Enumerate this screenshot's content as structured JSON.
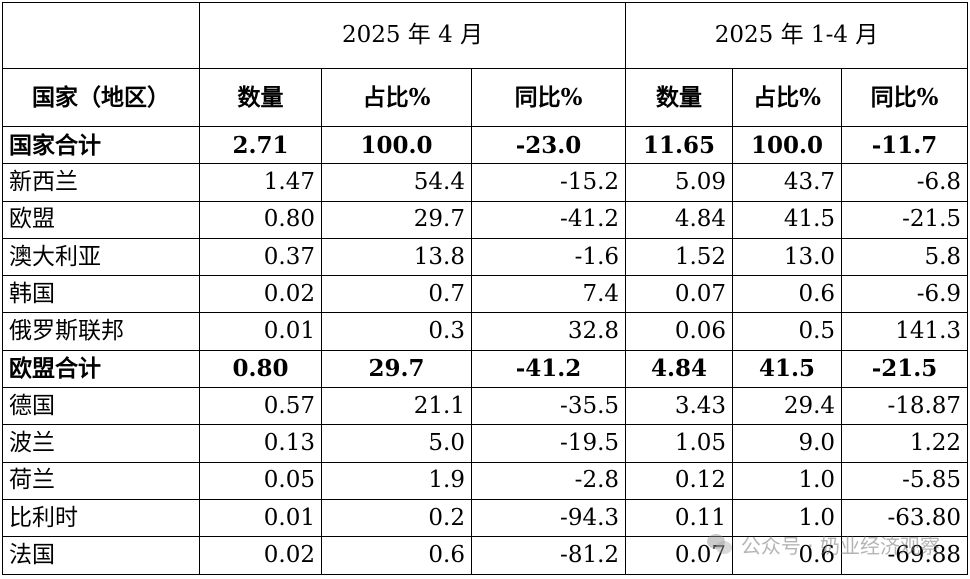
{
  "header": {
    "period1": "2025 年 4 月",
    "period2": "2025 年 1-4 月",
    "col_country": "国家（地区）",
    "col_qty": "数量",
    "col_share": "占比%",
    "col_yoy": "同比%"
  },
  "rows": [
    {
      "name": "国家合计",
      "q1": "2.71",
      "s1": "100.0",
      "y1": "-23.0",
      "q2": "11.65",
      "s2": "100.0",
      "y2": "-11.7",
      "bold": true
    },
    {
      "name": "新西兰",
      "q1": "1.47",
      "s1": "54.4",
      "y1": "-15.2",
      "q2": "5.09",
      "s2": "43.7",
      "y2": "-6.8"
    },
    {
      "name": "欧盟",
      "q1": "0.80",
      "s1": "29.7",
      "y1": "-41.2",
      "q2": "4.84",
      "s2": "41.5",
      "y2": "-21.5"
    },
    {
      "name": "澳大利亚",
      "q1": "0.37",
      "s1": "13.8",
      "y1": "-1.6",
      "q2": "1.52",
      "s2": "13.0",
      "y2": "5.8"
    },
    {
      "name": "韩国",
      "q1": "0.02",
      "s1": "0.7",
      "y1": "7.4",
      "q2": "0.07",
      "s2": "0.6",
      "y2": "-6.9"
    },
    {
      "name": "俄罗斯联邦",
      "q1": "0.01",
      "s1": "0.3",
      "y1": "32.8",
      "q2": "0.06",
      "s2": "0.5",
      "y2": "141.3"
    },
    {
      "name": "欧盟合计",
      "q1": "0.80",
      "s1": "29.7",
      "y1": "-41.2",
      "q2": "4.84",
      "s2": "41.5",
      "y2": "-21.5",
      "bold": true
    },
    {
      "name": "德国",
      "q1": "0.57",
      "s1": "21.1",
      "y1": "-35.5",
      "q2": "3.43",
      "s2": "29.4",
      "y2": "-18.87"
    },
    {
      "name": "波兰",
      "q1": "0.13",
      "s1": "5.0",
      "y1": "-19.5",
      "q2": "1.05",
      "s2": "9.0",
      "y2": "1.22"
    },
    {
      "name": "荷兰",
      "q1": "0.05",
      "s1": "1.9",
      "y1": "-2.8",
      "q2": "0.12",
      "s2": "1.0",
      "y2": "-5.85"
    },
    {
      "name": "比利时",
      "q1": "0.01",
      "s1": "0.2",
      "y1": "-94.3",
      "q2": "0.11",
      "s2": "1.0",
      "y2": "-63.80"
    },
    {
      "name": "法国",
      "q1": "0.02",
      "s1": "0.6",
      "y1": "-81.2",
      "q2": "0.07",
      "s2": "0.6",
      "y2": "-69.88"
    }
  ],
  "watermark": "公众号 · 奶业经济观察"
}
